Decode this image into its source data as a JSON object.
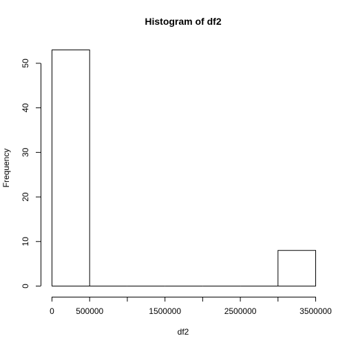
{
  "chart_data": {
    "type": "bar",
    "title": "Histogram of df2",
    "xlabel": "df2",
    "ylabel": "Frequency",
    "bins": [
      {
        "start": 0,
        "end": 500000,
        "count": 53
      },
      {
        "start": 500000,
        "end": 1000000,
        "count": 0
      },
      {
        "start": 1000000,
        "end": 1500000,
        "count": 0
      },
      {
        "start": 1500000,
        "end": 2000000,
        "count": 0
      },
      {
        "start": 2000000,
        "end": 2500000,
        "count": 0
      },
      {
        "start": 2500000,
        "end": 3000000,
        "count": 0
      },
      {
        "start": 3000000,
        "end": 3500000,
        "count": 8
      }
    ],
    "xlim": [
      0,
      3500000
    ],
    "ylim": [
      0,
      53
    ],
    "x_ticks": [
      0,
      500000,
      1000000,
      1500000,
      2000000,
      2500000,
      3000000,
      3500000
    ],
    "x_tick_labels": [
      "0",
      "500000",
      "",
      "1500000",
      "",
      "2500000",
      "",
      "3500000"
    ],
    "y_ticks": [
      0,
      10,
      20,
      30,
      40,
      50
    ],
    "y_tick_labels": [
      "0",
      "10",
      "20",
      "30",
      "40",
      "50"
    ],
    "grid": false,
    "legend": "none"
  }
}
